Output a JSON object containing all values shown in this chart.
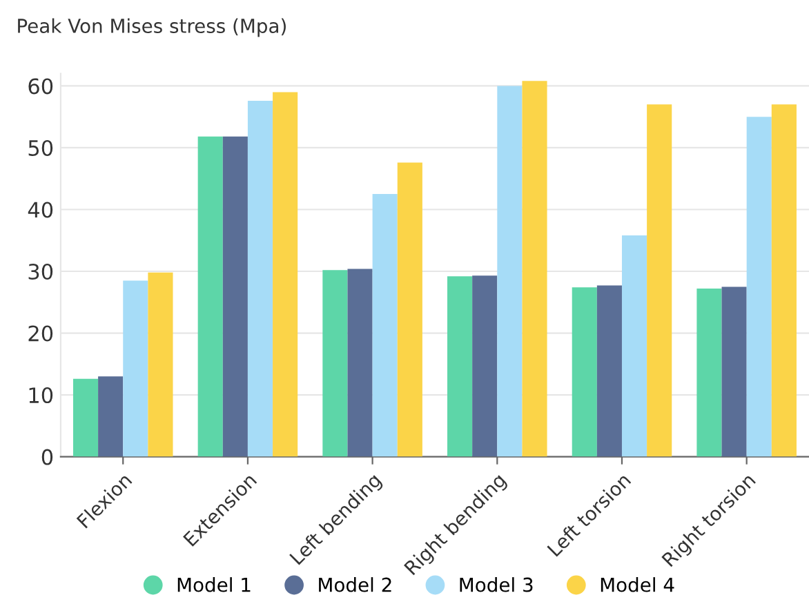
{
  "chart_data": {
    "type": "bar",
    "ylabel": "Peak Von Mises stress (Mpa)",
    "categories": [
      "Flexion",
      "Extension",
      "Left bending",
      "Right bending",
      "Left torsion",
      "Right torsion"
    ],
    "series": [
      {
        "name": "Model 1",
        "color": "#5dd6a8",
        "values": [
          12.6,
          51.8,
          30.2,
          29.2,
          27.4,
          27.2
        ]
      },
      {
        "name": "Model 2",
        "color": "#5a6e96",
        "values": [
          13.0,
          51.8,
          30.4,
          29.3,
          27.7,
          27.5
        ]
      },
      {
        "name": "Model 3",
        "color": "#a6dcf7",
        "values": [
          28.5,
          57.6,
          42.5,
          60.0,
          35.8,
          55.0
        ]
      },
      {
        "name": "Model 4",
        "color": "#fbd448",
        "values": [
          29.8,
          59.0,
          47.6,
          60.8,
          57.0,
          57.0
        ]
      }
    ],
    "ylim": [
      0,
      62
    ],
    "yticks": [
      0,
      10,
      20,
      30,
      40,
      50,
      60
    ],
    "grid": "y",
    "legend": "bottom",
    "marker": "circle"
  }
}
